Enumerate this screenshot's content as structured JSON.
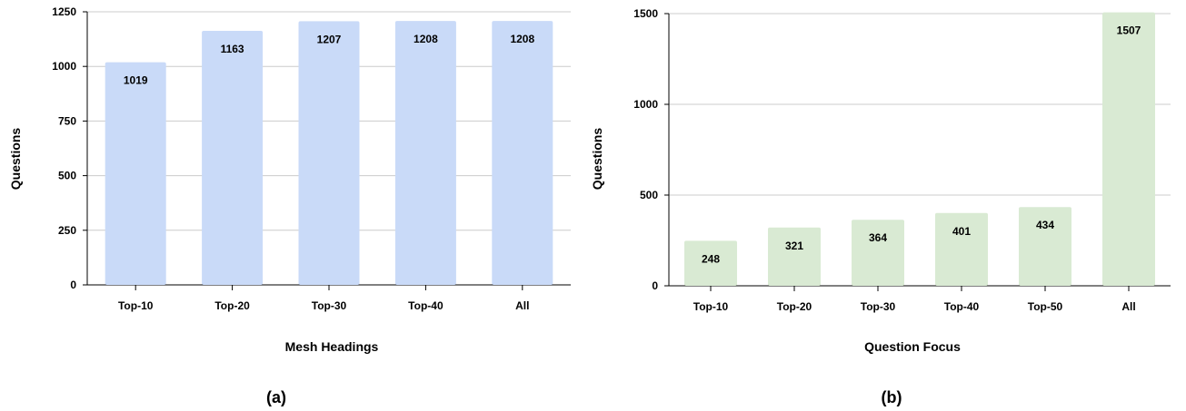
{
  "chart_data": [
    {
      "type": "bar",
      "caption": "(a)",
      "categories": [
        "Top-10",
        "Top-20",
        "Top-30",
        "Top-40",
        "All"
      ],
      "values": [
        1019,
        1163,
        1207,
        1208,
        1208
      ],
      "xlabel": "Mesh Headings",
      "ylabel": "Questions",
      "ylim": [
        0,
        1250
      ],
      "yticks": [
        0,
        250,
        500,
        750,
        1000,
        1250
      ],
      "grid": true,
      "bar_color": "#c9daf8"
    },
    {
      "type": "bar",
      "caption": "(b)",
      "categories": [
        "Top-10",
        "Top-20",
        "Top-30",
        "Top-40",
        "Top-50",
        "All"
      ],
      "values": [
        248,
        321,
        364,
        401,
        434,
        1507
      ],
      "xlabel": "Question Focus",
      "ylabel": "Questions",
      "ylim": [
        0,
        1500
      ],
      "yticks": [
        0,
        500,
        1000,
        1500
      ],
      "grid": true,
      "bar_color": "#d9ead3"
    }
  ]
}
